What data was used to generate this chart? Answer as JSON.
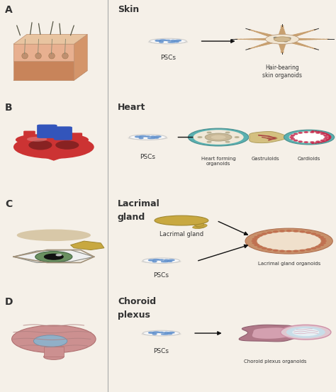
{
  "bg_color": "#f5f0e8",
  "panel_labels": [
    "A",
    "B",
    "C",
    "D"
  ],
  "panel_titles": [
    "Skin",
    "Heart",
    "Lacrimal\ngland",
    "Choroid\nplexus"
  ],
  "text_color": "#333333",
  "arrow_color": "#111111",
  "divider_color": "#aaaaaa",
  "skin_colors": {
    "top_skin": "#e8c4a0",
    "mid_skin": "#e8b090",
    "bot_skin": "#c8845a",
    "hair_color": "#555544",
    "follicle": "#c09070",
    "edge": "#c09070"
  },
  "heart_colors": {
    "red": "#cc3333",
    "blue": "#3355bb",
    "dark_red": "#882222",
    "pink": "#e89090",
    "organoid_teal": "#5ab0b0",
    "organoid_bg": "#f0e8d8",
    "organoid_inner": "#d8ccb8",
    "gastruloid_fill": "#d4c080",
    "gastruloid_vessel": "#aa4444",
    "cardioid_teal": "#5ab0b0",
    "cardioid_bg": "#f0e8d8",
    "cardioid_dot": "#cc4466"
  },
  "lacrimal_colors": {
    "gland_gold": "#c8a840",
    "gland_dark": "#a08830",
    "eye_white": "#f0f0f0",
    "iris": "#6a9060",
    "pupil": "#111111",
    "lid": "#c8b890",
    "organoid_outer": "#c8906a",
    "organoid_ring": "#d4a07a",
    "organoid_inner": "#f0e0cc",
    "dot_color": "#c07050"
  },
  "choroid_colors": {
    "brain_pink": "#cc9090",
    "brain_dark": "#b07070",
    "ventricle": "#90b0c8",
    "sulcus": "#b08080",
    "organoid_main": "#b07888",
    "organoid_inner": "#d4a0b0",
    "cyst_outer": "#e0c8d0",
    "cyst_inner": "#c8dde8",
    "cyst_white": "#e8f0f4",
    "cyst_border": "#d090a8"
  },
  "psc_colors": {
    "dish_white": "#f8f8f8",
    "dish_edge": "#cccccc",
    "cell_blue": "#6090cc",
    "cell_light": "#90b8e0"
  }
}
